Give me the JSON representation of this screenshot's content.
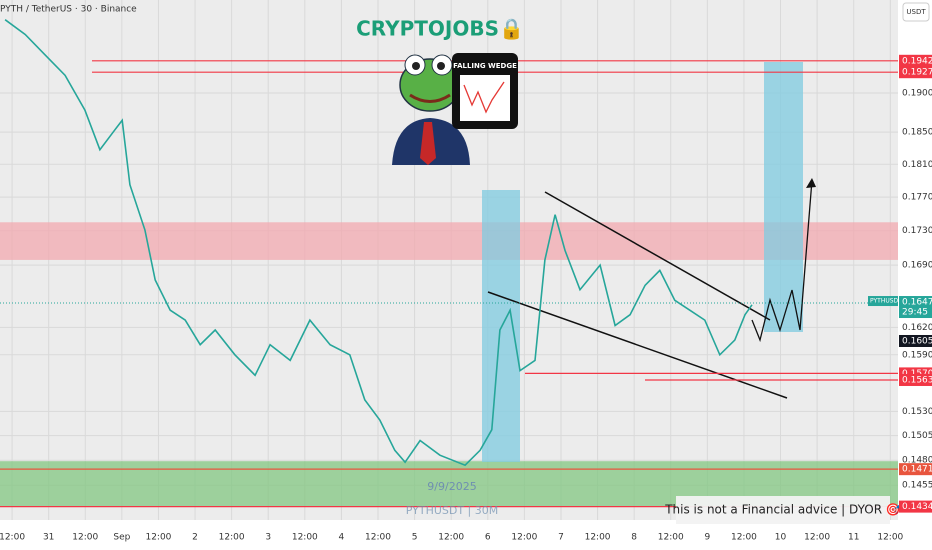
{
  "chart_data": {
    "type": "line",
    "title": "PYTH / TetherUS · 30 · Binance",
    "brand": "CRYPTOJOBS🔒",
    "badge": "FALLING WEDGE",
    "currency": "USDT",
    "date_note": "9/9/2025",
    "watermark": "PYTHUSDT | 30M",
    "disclaimer": "This is not a Financial advice | DYOR 🎯",
    "log_scale": true,
    "grid": true,
    "color": "#26a69a",
    "ylim": [
      0.1421,
      0.2024
    ],
    "yticks": [
      {
        "value": 0.19,
        "label": "0.1900"
      },
      {
        "value": 0.185,
        "label": "0.1850"
      },
      {
        "value": 0.181,
        "label": "0.1810"
      },
      {
        "value": 0.177,
        "label": "0.1770"
      },
      {
        "value": 0.173,
        "label": "0.1730"
      },
      {
        "value": 0.169,
        "label": "0.1690"
      },
      {
        "value": 0.162,
        "label": "0.1620"
      },
      {
        "value": 0.159,
        "label": "0.1590"
      },
      {
        "value": 0.153,
        "label": "0.1530"
      },
      {
        "value": 0.1505,
        "label": "0.1505"
      },
      {
        "value": 0.148,
        "label": "0.1480"
      },
      {
        "value": 0.1455,
        "label": "0.1455"
      }
    ],
    "xlim": [
      -0.33,
      24.21
    ],
    "xticks": [
      {
        "value": 0,
        "label": "12:00"
      },
      {
        "value": 1,
        "label": "31"
      },
      {
        "value": 2,
        "label": "12:00"
      },
      {
        "value": 3,
        "label": "Sep"
      },
      {
        "value": 4,
        "label": "12:00"
      },
      {
        "value": 5,
        "label": "2"
      },
      {
        "value": 6,
        "label": "12:00"
      },
      {
        "value": 7,
        "label": "3"
      },
      {
        "value": 8,
        "label": "12:00"
      },
      {
        "value": 9,
        "label": "4"
      },
      {
        "value": 10,
        "label": "12:00"
      },
      {
        "value": 11,
        "label": "5"
      },
      {
        "value": 12,
        "label": "12:00"
      },
      {
        "value": 13,
        "label": "6"
      },
      {
        "value": 14,
        "label": "12:00"
      },
      {
        "value": 15,
        "label": "7"
      },
      {
        "value": 16,
        "label": "12:00"
      },
      {
        "value": 17,
        "label": "8"
      },
      {
        "value": 18,
        "label": "12:00"
      },
      {
        "value": 19,
        "label": "9"
      },
      {
        "value": 20,
        "label": "12:00"
      },
      {
        "value": 21,
        "label": "10"
      },
      {
        "value": 22,
        "label": "12:00"
      },
      {
        "value": 23,
        "label": "11"
      },
      {
        "value": 24,
        "label": "12:00"
      }
    ],
    "x": [
      -0.19,
      0.36,
      0.9,
      1.45,
      1.99,
      2.4,
      2.81,
      3.01,
      3.22,
      3.63,
      3.91,
      4.32,
      4.73,
      5.14,
      5.55,
      6.09,
      6.64,
      7.05,
      7.6,
      8.14,
      8.69,
      9.23,
      9.64,
      10.05,
      10.46,
      10.74,
      11.15,
      11.69,
      12.38,
      12.79,
      13.11,
      13.33,
      13.61,
      13.88,
      14.29,
      14.56,
      14.84,
      15.11,
      15.52,
      16.07,
      16.48,
      16.89,
      17.3,
      17.7,
      18.11,
      18.52,
      18.93,
      19.34,
      19.75,
      20.03,
      20.22
    ],
    "values": [
      0.1997,
      0.1977,
      0.195,
      0.1923,
      0.1878,
      0.1828,
      0.1853,
      0.1865,
      0.1785,
      0.1731,
      0.1673,
      0.1639,
      0.1628,
      0.1601,
      0.1617,
      0.159,
      0.1568,
      0.1601,
      0.1584,
      0.1628,
      0.1601,
      0.159,
      0.1542,
      0.1521,
      0.149,
      0.1478,
      0.15,
      0.1485,
      0.1475,
      0.149,
      0.1511,
      0.1617,
      0.1639,
      0.1573,
      0.1584,
      0.1696,
      0.1749,
      0.1707,
      0.1662,
      0.169,
      0.1622,
      0.1634,
      0.1667,
      0.1684,
      0.165,
      0.1639,
      0.1628,
      0.159,
      0.1606,
      0.1634,
      0.1645
    ],
    "levels": [
      {
        "value": 0.1942,
        "label": "0.1942",
        "color": "#f23645"
      },
      {
        "value": 0.1927,
        "label": "0.1927",
        "color": "#f23645"
      },
      {
        "value": 0.157,
        "label": "0.1570",
        "color": "#f23645"
      },
      {
        "value": 0.1563,
        "label": "0.1563",
        "color": "#f23645"
      },
      {
        "value": 0.1471,
        "label": "0.1471",
        "color": "#e8553e"
      },
      {
        "value": 0.1434,
        "label": "0.1434",
        "color": "#f23645"
      }
    ],
    "zones": [
      {
        "from": 0.174,
        "to": 0.1696,
        "color": "#f4a5ad"
      },
      {
        "from": 0.1479,
        "to": 0.1434,
        "color": "#7cc47a"
      }
    ],
    "last_price": {
      "value": 0.1647,
      "label": "0.1647",
      "symbol": "PYTHUSDT",
      "countdown": "29:45"
    },
    "marker_price": {
      "value": 0.1605,
      "label": "0.1605"
    }
  }
}
